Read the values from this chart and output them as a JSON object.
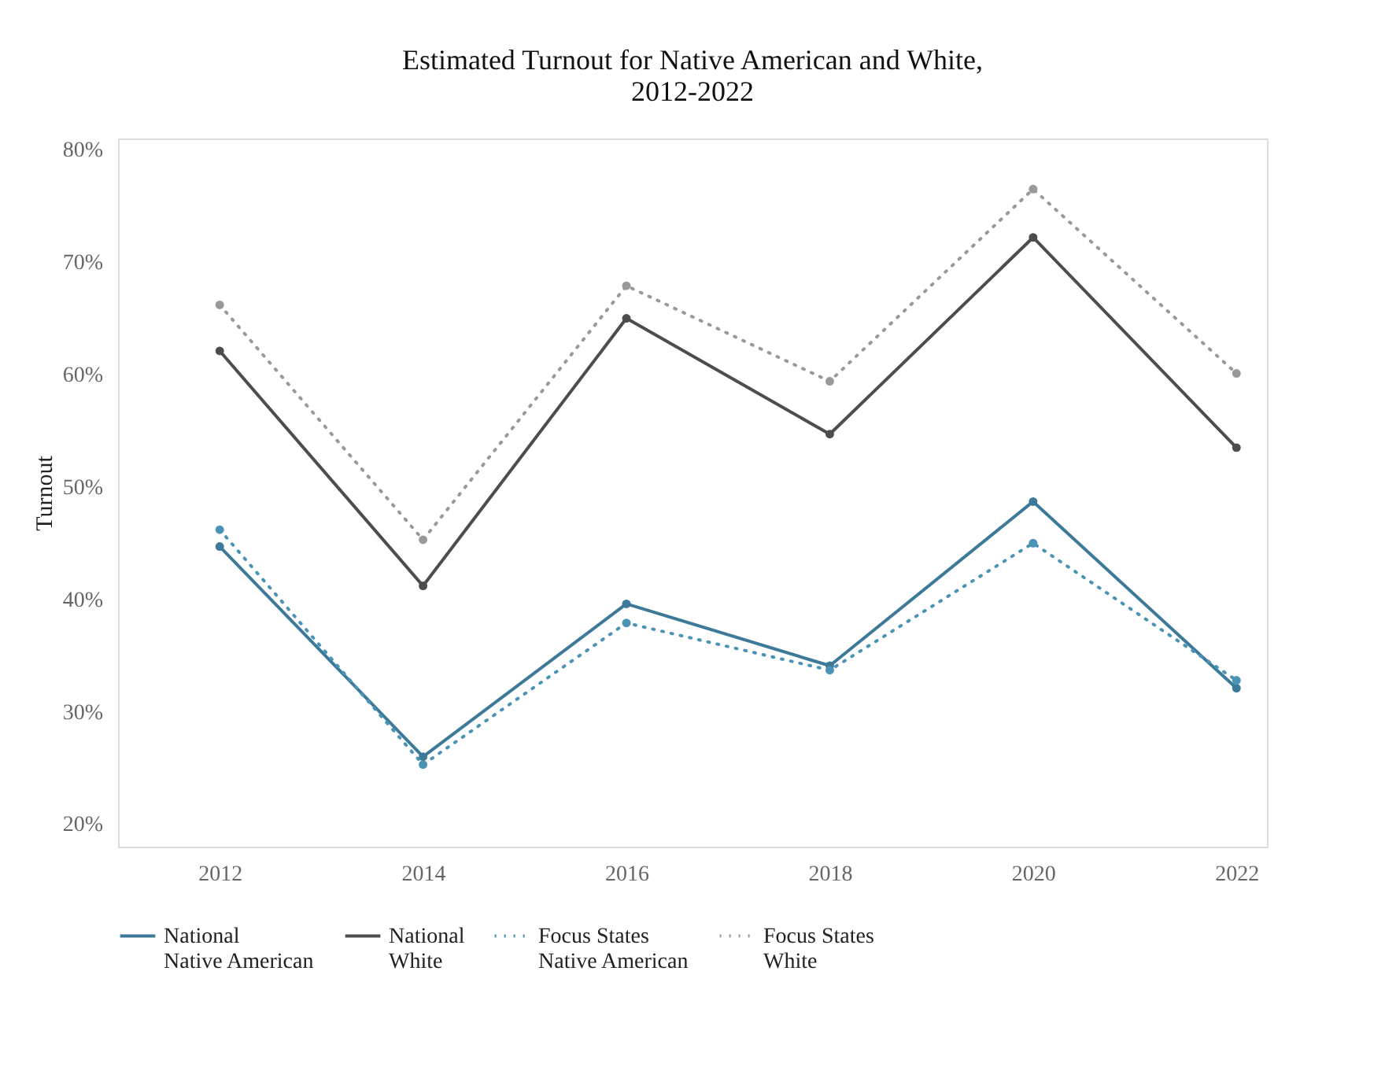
{
  "chart_data": {
    "type": "line",
    "title": [
      "Estimated Turnout for Native American and White,",
      "2012-2022"
    ],
    "ylabel": "Turnout",
    "x": [
      2012,
      2014,
      2016,
      2018,
      2020,
      2022
    ],
    "xlim": [
      2011,
      2022.3
    ],
    "xticks": [
      2012,
      2014,
      2016,
      2018,
      2020,
      2022
    ],
    "ylim": [
      18,
      81
    ],
    "yticks": [
      {
        "value": 20,
        "label": "20%"
      },
      {
        "value": 30,
        "label": "30%"
      },
      {
        "value": 40,
        "label": "40%"
      },
      {
        "value": 50,
        "label": "50%"
      },
      {
        "value": 60,
        "label": "60%"
      },
      {
        "value": 70,
        "label": "70%"
      },
      {
        "value": 80,
        "label": "80%"
      }
    ],
    "grid": false,
    "legend": "bottom",
    "marker": "circle",
    "series": [
      {
        "name": "National\nNative American",
        "color": "#3d7a99",
        "line_style": "solid",
        "values": [
          44.7,
          26.0,
          39.6,
          34.1,
          48.7,
          32.1
        ]
      },
      {
        "name": "National\nWhite",
        "color": "#4d4d4d",
        "line_style": "solid",
        "values": [
          62.1,
          41.2,
          65.0,
          54.7,
          72.2,
          53.5
        ]
      },
      {
        "name": "Focus States\nNative American",
        "color": "#4a93b5",
        "line_style": "dotted",
        "values": [
          46.2,
          25.3,
          37.9,
          33.7,
          45.0,
          32.8
        ]
      },
      {
        "name": "Focus States\nWhite",
        "color": "#999999",
        "line_style": "dotted",
        "values": [
          66.2,
          45.3,
          67.9,
          59.4,
          76.5,
          60.1
        ]
      }
    ]
  }
}
